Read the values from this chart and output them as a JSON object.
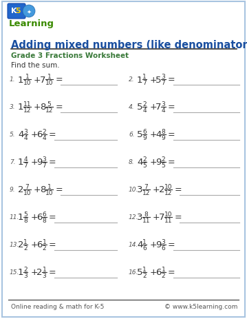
{
  "title": "Adding mixed numbers (like denominators)",
  "subtitle": "Grade 3 Fractions Worksheet",
  "instruction": "Find the sum.",
  "footer_left": "Online reading & math for K-5",
  "footer_right": "© www.k5learning.com",
  "problems": [
    {
      "num": "1.",
      "w1": "1",
      "n1": "1",
      "d1": "10",
      "w2": "7",
      "n2": "1",
      "d2": "10"
    },
    {
      "num": "2.",
      "w1": "1",
      "n1": "1",
      "d1": "7",
      "w2": "5",
      "n2": "3",
      "d2": "7"
    },
    {
      "num": "3.",
      "w1": "1",
      "n1": "11",
      "d1": "12",
      "w2": "8",
      "n2": "5",
      "d2": "12"
    },
    {
      "num": "4.",
      "w1": "5",
      "n1": "2",
      "d1": "4",
      "w2": "7",
      "n2": "3",
      "d2": "4"
    },
    {
      "num": "5.",
      "w1": "4",
      "n1": "3",
      "d1": "4",
      "w2": "6",
      "n2": "2",
      "d2": "4"
    },
    {
      "num": "6.",
      "w1": "5",
      "n1": "6",
      "d1": "9",
      "w2": "4",
      "n2": "8",
      "d2": "9"
    },
    {
      "num": "7.",
      "w1": "1",
      "n1": "4",
      "d1": "7",
      "w2": "9",
      "n2": "3",
      "d2": "7"
    },
    {
      "num": "8.",
      "w1": "4",
      "n1": "2",
      "d1": "5",
      "w2": "9",
      "n2": "2",
      "d2": "5"
    },
    {
      "num": "9.",
      "w1": "2",
      "n1": "7",
      "d1": "10",
      "w2": "8",
      "n2": "1",
      "d2": "10"
    },
    {
      "num": "10.",
      "w1": "3",
      "n1": "7",
      "d1": "12",
      "w2": "2",
      "n2": "10",
      "d2": "12"
    },
    {
      "num": "11.",
      "w1": "1",
      "n1": "5",
      "d1": "8",
      "w2": "6",
      "n2": "6",
      "d2": "8"
    },
    {
      "num": "12.",
      "w1": "3",
      "n1": "8",
      "d1": "11",
      "w2": "7",
      "n2": "10",
      "d2": "11"
    },
    {
      "num": "13.",
      "w1": "2",
      "n1": "1",
      "d1": "2",
      "w2": "6",
      "n2": "1",
      "d2": "2"
    },
    {
      "num": "14.",
      "w1": "4",
      "n1": "1",
      "d1": "6",
      "w2": "9",
      "n2": "3",
      "d2": "6"
    },
    {
      "num": "15.",
      "w1": "1",
      "n1": "2",
      "d1": "3",
      "w2": "2",
      "n2": "1",
      "d2": "3"
    },
    {
      "num": "16.",
      "w1": "5",
      "n1": "1",
      "d1": "2",
      "w2": "6",
      "n2": "1",
      "d2": "2"
    }
  ],
  "border_color": "#a8c4e0",
  "title_color": "#1a4fa0",
  "subtitle_color": "#3a7a3a",
  "text_color": "#333333",
  "footer_color": "#555555",
  "line_color": "#aaaaaa",
  "bg_color": "#ffffff",
  "fraction_color": "#333333",
  "num_color": "#555555"
}
